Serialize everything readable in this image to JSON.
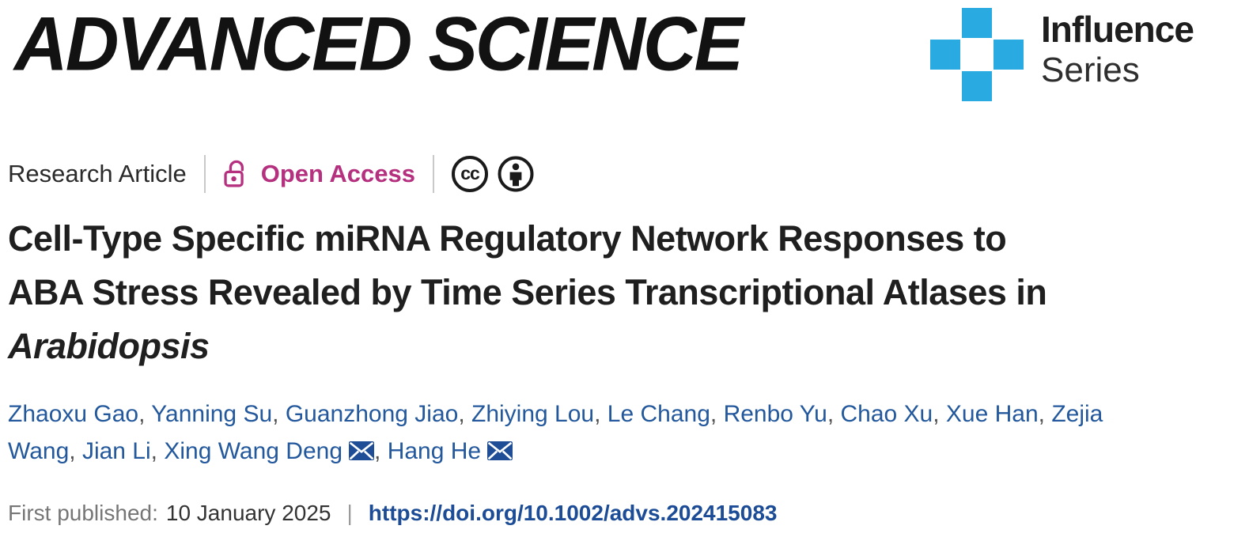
{
  "journal": {
    "logo_text": "ADVANCED SCIENCE"
  },
  "series_badge": {
    "line1": "Influence",
    "line2": "Series"
  },
  "meta": {
    "article_type": "Research Article",
    "access_label": "Open Access",
    "cc_label": "cc"
  },
  "title": {
    "line1": "Cell-Type Specific miRNA Regulatory Network Responses to",
    "line2": "ABA Stress Revealed by Time Series Transcriptional Atlases in",
    "line3_italic": "Arabidopsis"
  },
  "authors": [
    {
      "name": "Zhaoxu Gao"
    },
    {
      "name": "Yanning Su"
    },
    {
      "name": "Guanzhong Jiao"
    },
    {
      "name": "Zhiying Lou"
    },
    {
      "name": "Le Chang"
    },
    {
      "name": "Renbo Yu"
    },
    {
      "name": "Chao Xu"
    },
    {
      "name": "Xue Han"
    },
    {
      "name": "Zejia Wang"
    },
    {
      "name": "Jian Li"
    },
    {
      "name": "Xing Wang Deng",
      "email": true
    },
    {
      "name": "Hang He",
      "email": true
    }
  ],
  "published": {
    "label": "First published:",
    "date": "10 January 2025",
    "separator": "|",
    "doi": "https://doi.org/10.1002/advs.202415083"
  },
  "colors": {
    "accent-blue": "#29ABE2",
    "magenta": "#B5317F",
    "author-blue": "#23589C",
    "doi-blue": "#1C4C96",
    "title-ink": "#1F1F1F",
    "logo-ink": "#121212",
    "muted-gray": "#767676",
    "divider-gray": "#C9C9C9"
  }
}
